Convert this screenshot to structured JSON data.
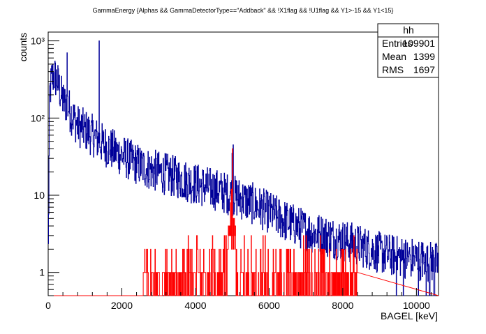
{
  "chart_data": {
    "type": "histogram",
    "title": "GammaEnergy {Alphas && GammaDetectorType==\"Addback\" &&  !X1flag && !U1flag  && Y1>-15 && Y1<15}",
    "xlabel": "BAGEL [keV]",
    "ylabel": "counts",
    "xlim": [
      0,
      10600
    ],
    "ylim": [
      0.5,
      1300
    ],
    "y_scale": "log",
    "x_ticks": [
      0,
      2000,
      4000,
      6000,
      8000,
      10000
    ],
    "x_tick_labels": [
      "0",
      "2000",
      "4000",
      "6000",
      "8000",
      "10000"
    ],
    "y_tick_labels": [
      "1",
      "10",
      "10²",
      "10³"
    ],
    "y_tick_values": [
      1,
      10,
      100,
      1000
    ],
    "grid": false,
    "series": [
      {
        "color": "#000099",
        "envelope": [
          [
            0,
            1
          ],
          [
            40,
            200
          ],
          [
            100,
            330
          ],
          [
            160,
            360
          ],
          [
            250,
            300
          ],
          [
            350,
            200
          ],
          [
            450,
            150
          ],
          [
            500,
            160
          ],
          [
            600,
            120
          ],
          [
            800,
            80
          ],
          [
            1000,
            70
          ],
          [
            1200,
            60
          ],
          [
            1300,
            55
          ],
          [
            1400,
            50
          ],
          [
            1500,
            45
          ],
          [
            1700,
            40
          ],
          [
            2000,
            33
          ],
          [
            2300,
            27
          ],
          [
            2600,
            23
          ],
          [
            3000,
            20
          ],
          [
            3500,
            17
          ],
          [
            4000,
            14
          ],
          [
            4500,
            12
          ],
          [
            5000,
            10
          ],
          [
            5500,
            8
          ],
          [
            6000,
            6
          ],
          [
            6500,
            4.5
          ],
          [
            7000,
            3.5
          ],
          [
            7500,
            3
          ],
          [
            8000,
            2.6
          ],
          [
            8500,
            2.2
          ],
          [
            9000,
            1.8
          ],
          [
            9500,
            1.6
          ],
          [
            10000,
            1.5
          ],
          [
            10600,
            1.3
          ]
        ],
        "peaks": [
          {
            "x": 510,
            "y": 700
          },
          {
            "x": 1380,
            "y": 1000
          },
          {
            "x": 4990,
            "y": 35
          },
          {
            "x": 5020,
            "y": 45
          },
          {
            "x": 2580,
            "y": 30
          }
        ]
      },
      {
        "color": "#ff0000",
        "note_range": [
          2550,
          8400
        ],
        "envelope": [
          [
            2550,
            1.3
          ],
          [
            3000,
            1.6
          ],
          [
            4000,
            2
          ],
          [
            4700,
            2.5
          ],
          [
            5000,
            3.5
          ],
          [
            5500,
            2.2
          ],
          [
            6000,
            1.8
          ],
          [
            7000,
            1.3
          ],
          [
            8000,
            1.1
          ],
          [
            8400,
            1
          ]
        ],
        "peaks": [
          {
            "x": 5000,
            "y": 40
          },
          {
            "x": 4950,
            "y": 8
          },
          {
            "x": 4970,
            "y": 12
          }
        ]
      }
    ],
    "stats_box": {
      "name": "hh",
      "rows": [
        {
          "label": "Entries",
          "value": "109901"
        },
        {
          "label": "Mean",
          "value": "1399"
        },
        {
          "label": "RMS",
          "value": "1697"
        }
      ]
    }
  }
}
